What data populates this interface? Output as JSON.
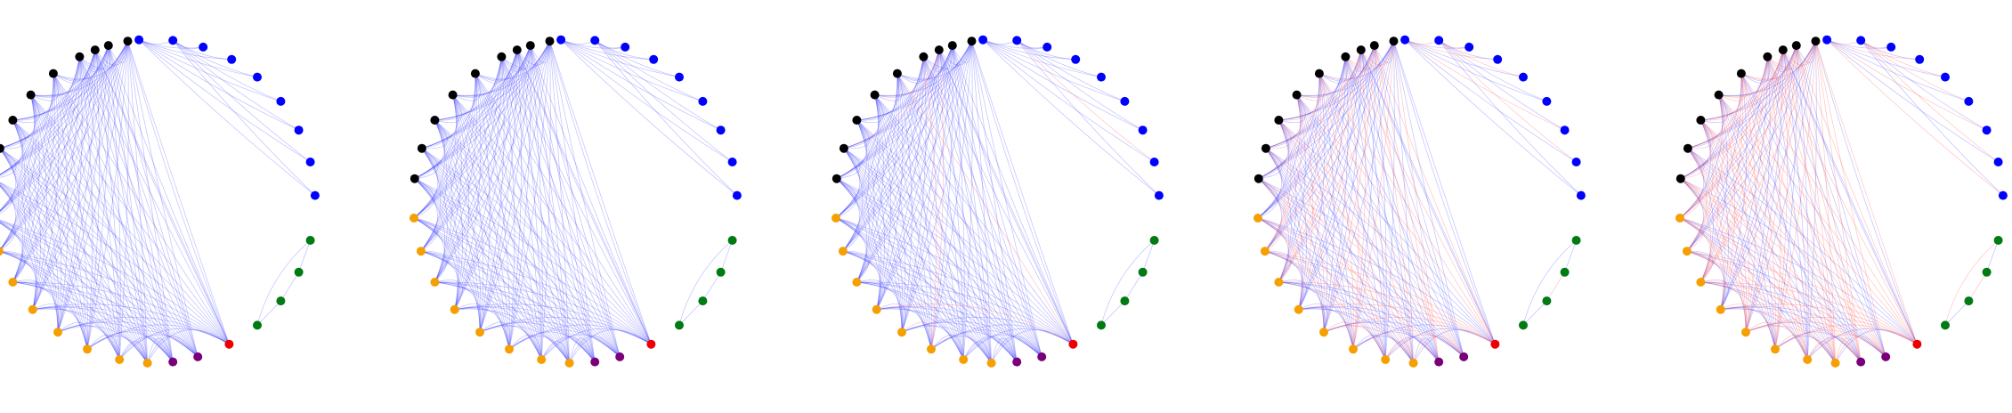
{
  "figure": {
    "panel_count": 5,
    "node_groups": [
      {
        "group": "black",
        "color": "#000000",
        "count": 9
      },
      {
        "group": "blue",
        "color": "#0000ff",
        "count": 9
      },
      {
        "group": "green",
        "color": "#007a12",
        "count": 4
      },
      {
        "group": "red",
        "color": "#ee0000",
        "count": 1
      },
      {
        "group": "purple",
        "color": "#7a007a",
        "count": 2
      },
      {
        "group": "orange",
        "color": "#f5a000",
        "count": 8
      }
    ],
    "edge_colors": {
      "blue": "#3a3aff",
      "red": "#ff5a5a"
    },
    "panels": [
      {
        "red_edge_share": 0.0
      },
      {
        "red_edge_share": 0.0
      },
      {
        "red_edge_share": 0.04
      },
      {
        "red_edge_share": 0.35
      },
      {
        "red_edge_share": 0.55
      }
    ]
  }
}
